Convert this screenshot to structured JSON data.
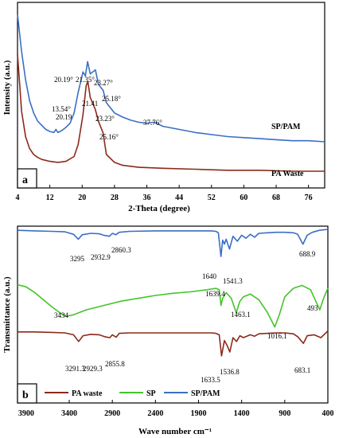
{
  "chart_data": [
    {
      "type": "line",
      "panel_label": "a",
      "xlabel": "2-Theta (degree)",
      "ylabel": "Intensity (a.u.)",
      "xlim": [
        4,
        80
      ],
      "xticks": [
        4,
        12,
        20,
        28,
        36,
        44,
        52,
        60,
        68,
        76
      ],
      "series": [
        {
          "name": "SP/PAM",
          "color": "#3a6fc4",
          "x": [
            4,
            5,
            6,
            7,
            8,
            9,
            10,
            11,
            12,
            13,
            13.5,
            14,
            15,
            16,
            17,
            18,
            19,
            20.2,
            20.8,
            21.35,
            22.0,
            23.27,
            24.0,
            25.18,
            26,
            28,
            30,
            32,
            34,
            36,
            37.76,
            40,
            44,
            48,
            52,
            56,
            60,
            64,
            68,
            72,
            76,
            80
          ],
          "y": [
            100,
            82,
            68,
            58,
            52,
            48,
            46,
            44,
            43,
            42.5,
            44,
            42.5,
            43.5,
            45,
            47,
            52,
            62,
            72,
            70,
            77,
            71,
            73,
            66,
            63,
            57,
            52,
            50,
            48.5,
            47.5,
            47,
            47.5,
            45.5,
            44,
            42.5,
            41.5,
            40.5,
            40,
            39.5,
            39,
            38.5,
            38.5,
            38
          ]
        },
        {
          "name": "PA Waste",
          "color": "#8b2a1a",
          "x": [
            4,
            4.5,
            5,
            6,
            7,
            8,
            9,
            10,
            12,
            14,
            16,
            18,
            19,
            20.19,
            21.0,
            21.41,
            22,
            23.23,
            24,
            25.16,
            26,
            28,
            30,
            34,
            40,
            48,
            56,
            64,
            72,
            80
          ],
          "y": [
            74,
            60,
            45,
            32,
            26,
            23,
            21.5,
            20.5,
            19.5,
            19,
            19.5,
            22,
            28,
            43,
            58,
            60,
            52,
            46,
            40,
            34,
            23,
            19,
            17.5,
            16.5,
            16,
            15.5,
            15,
            15,
            14.5,
            14.5
          ]
        }
      ],
      "annotations": [
        {
          "text": "13.54°"
        },
        {
          "text": "20.19°"
        },
        {
          "text": "21.35°"
        },
        {
          "text": "23.27°"
        },
        {
          "text": "25.18°"
        },
        {
          "text": "37.76°"
        },
        {
          "text": "21.41"
        },
        {
          "text": "20.19"
        },
        {
          "text": "23.23°"
        },
        {
          "text": "25.16°"
        }
      ]
    },
    {
      "type": "line",
      "panel_label": "b",
      "xlabel": "Wave number cm⁻¹",
      "ylabel": "Transmittance (a.u.)",
      "xlim": [
        4000,
        400
      ],
      "xticks": [
        3900,
        3400,
        2900,
        2400,
        1900,
        1400,
        900,
        400
      ],
      "legend": {
        "position": "bottom-left",
        "entries": [
          "PA waste",
          "SP",
          "SP/PAM"
        ]
      },
      "series": [
        {
          "name": "SP/PAM",
          "color": "#3a6fc4",
          "x": [
            4000,
            3800,
            3600,
            3450,
            3350,
            3295,
            3250,
            3150,
            3050,
            3000,
            2932.9,
            2900,
            2860.3,
            2820,
            2700,
            2400,
            2100,
            1900,
            1750,
            1700,
            1670,
            1640,
            1620,
            1600,
            1580,
            1541.3,
            1500,
            1450,
            1400,
            1350,
            1300,
            1250,
            1200,
            1100,
            1000,
            900,
            800,
            750,
            688.9,
            640,
            580,
            500,
            400
          ],
          "y": [
            98,
            97,
            96,
            95,
            90,
            80,
            89,
            92,
            91,
            88,
            86,
            92,
            89,
            94,
            96,
            97,
            97,
            97,
            97,
            96,
            93,
            45,
            78,
            70,
            80,
            60,
            86,
            76,
            88,
            82,
            90,
            84,
            92,
            93,
            94,
            94,
            93,
            90,
            70,
            88,
            94,
            98,
            100
          ]
        },
        {
          "name": "SP",
          "color": "#44c42a",
          "x": [
            4000,
            3900,
            3800,
            3700,
            3600,
            3500,
            3434,
            3350,
            3200,
            3000,
            2800,
            2600,
            2400,
            2200,
            2000,
            1800,
            1700,
            1660,
            1639.4,
            1620,
            1580,
            1520,
            1463.1,
            1420,
            1380,
            1300,
            1200,
            1100,
            1016.1,
            960,
            900,
            800,
            700,
            600,
            540,
            493,
            450,
            400
          ],
          "y": [
            75,
            72,
            64,
            54,
            44,
            35,
            31,
            33,
            40,
            46,
            52,
            56,
            60,
            63,
            65,
            68,
            70,
            68,
            46,
            56,
            64,
            56,
            36,
            52,
            58,
            62,
            54,
            36,
            16,
            34,
            58,
            70,
            74,
            68,
            52,
            40,
            56,
            70
          ]
        },
        {
          "name": "PA waste",
          "color": "#8b2a1a",
          "x": [
            4000,
            3800,
            3600,
            3450,
            3350,
            3291.3,
            3240,
            3150,
            3050,
            2990,
            2929.3,
            2900,
            2855.8,
            2820,
            2700,
            2400,
            2100,
            1900,
            1750,
            1700,
            1660,
            1633.5,
            1600,
            1570,
            1536.8,
            1500,
            1460,
            1420,
            1380,
            1300,
            1250,
            1200,
            1100,
            1000,
            900,
            800,
            750,
            683.1,
            640,
            560,
            480,
            400
          ],
          "y": [
            72,
            72,
            71,
            70,
            66,
            52,
            64,
            67,
            66,
            62,
            60,
            66,
            61,
            69,
            70,
            70,
            70,
            70,
            70,
            69,
            66,
            22,
            54,
            44,
            30,
            60,
            52,
            64,
            60,
            66,
            63,
            68,
            69,
            70,
            70,
            68,
            62,
            48,
            64,
            66,
            60,
            74
          ]
        }
      ],
      "annotations": [
        {
          "text": "3295"
        },
        {
          "text": "2932.9"
        },
        {
          "text": "2860.3"
        },
        {
          "text": "1640"
        },
        {
          "text": "1541.3"
        },
        {
          "text": "688.9"
        },
        {
          "text": "3434"
        },
        {
          "text": "1639.4"
        },
        {
          "text": "1463.1"
        },
        {
          "text": "1016.1"
        },
        {
          "text": "493"
        },
        {
          "text": "3291.3"
        },
        {
          "text": "2929.3"
        },
        {
          "text": "2855.8"
        },
        {
          "text": "1633.5"
        },
        {
          "text": "1536.8"
        },
        {
          "text": "683.1"
        }
      ]
    }
  ]
}
